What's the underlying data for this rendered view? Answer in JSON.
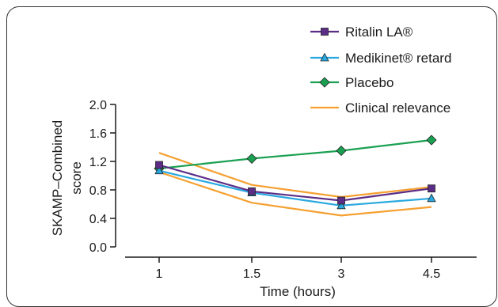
{
  "chart_data": {
    "type": "line",
    "title": "",
    "xlabel": "Time (hours)",
    "ylabel_lines": [
      "SKAMP–Combined",
      "score"
    ],
    "categories": [
      "1",
      "1.5",
      "3",
      "4.5"
    ],
    "ylim": [
      0.0,
      2.0
    ],
    "yticks": [
      "0.0",
      "0.4",
      "0.8",
      "1.2",
      "1.6",
      "2.0"
    ],
    "grid": false,
    "legend_position": "top-right",
    "series": [
      {
        "name": "Ritalin LA®",
        "color": "#5b2d86",
        "marker": "square",
        "values": [
          1.15,
          0.78,
          0.65,
          0.82
        ]
      },
      {
        "name": "Medikinet® retard",
        "color": "#29a8e0",
        "marker": "triangle",
        "values": [
          1.07,
          0.76,
          0.58,
          0.68
        ]
      },
      {
        "name": "Placebo",
        "color": "#1aa052",
        "marker": "diamond",
        "values": [
          1.1,
          1.24,
          1.35,
          1.5
        ]
      },
      {
        "name": "Clinical relevance",
        "color": "#f5a031",
        "marker": "none",
        "values": [
          1.32,
          0.87,
          0.7,
          0.84
        ]
      }
    ],
    "clinical_relevance_lower": {
      "color": "#f5a031",
      "values": [
        1.05,
        0.62,
        0.44,
        0.56
      ]
    }
  }
}
